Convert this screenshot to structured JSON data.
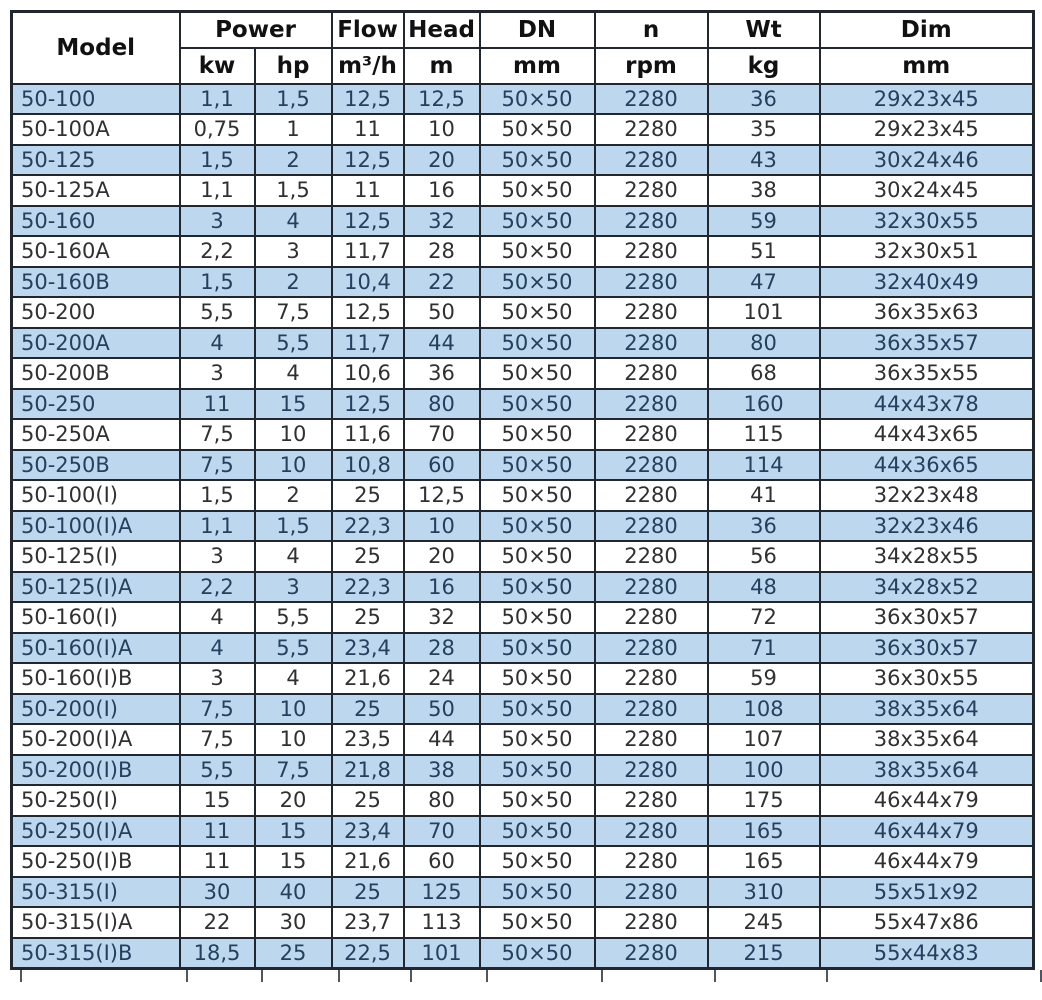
{
  "header": {
    "model": "Model",
    "power": "Power",
    "kw": "kw",
    "hp": "hp",
    "flow": "Flow",
    "flow_unit": "m³/h",
    "head": "Head",
    "head_unit": "m",
    "dn": "DN",
    "dn_unit": "mm",
    "n": "n",
    "n_unit": "rpm",
    "wt": "Wt",
    "wt_unit": "kg",
    "dim": "Dim",
    "dim_unit": "mm"
  },
  "columns": [
    "model",
    "kw",
    "hp",
    "flow",
    "head",
    "dn",
    "n",
    "wt",
    "dim"
  ],
  "rows": [
    [
      "50-100",
      "1,1",
      "1,5",
      "12,5",
      "12,5",
      "50×50",
      "2280",
      "36",
      "29x23x45"
    ],
    [
      "50-100A",
      "0,75",
      "1",
      "11",
      "10",
      "50×50",
      "2280",
      "35",
      "29x23x45"
    ],
    [
      "50-125",
      "1,5",
      "2",
      "12,5",
      "20",
      "50×50",
      "2280",
      "43",
      "30x24x46"
    ],
    [
      "50-125A",
      "1,1",
      "1,5",
      "11",
      "16",
      "50×50",
      "2280",
      "38",
      "30x24x45"
    ],
    [
      "50-160",
      "3",
      "4",
      "12,5",
      "32",
      "50×50",
      "2280",
      "59",
      "32x30x55"
    ],
    [
      "50-160A",
      "2,2",
      "3",
      "11,7",
      "28",
      "50×50",
      "2280",
      "51",
      "32x30x51"
    ],
    [
      "50-160B",
      "1,5",
      "2",
      "10,4",
      "22",
      "50×50",
      "2280",
      "47",
      "32x40x49"
    ],
    [
      "50-200",
      "5,5",
      "7,5",
      "12,5",
      "50",
      "50×50",
      "2280",
      "101",
      "36x35x63"
    ],
    [
      "50-200A",
      "4",
      "5,5",
      "11,7",
      "44",
      "50×50",
      "2280",
      "80",
      "36x35x57"
    ],
    [
      "50-200B",
      "3",
      "4",
      "10,6",
      "36",
      "50×50",
      "2280",
      "68",
      "36x35x55"
    ],
    [
      "50-250",
      "11",
      "15",
      "12,5",
      "80",
      "50×50",
      "2280",
      "160",
      "44x43x78"
    ],
    [
      "50-250A",
      "7,5",
      "10",
      "11,6",
      "70",
      "50×50",
      "2280",
      "115",
      "44x43x65"
    ],
    [
      "50-250B",
      "7,5",
      "10",
      "10,8",
      "60",
      "50×50",
      "2280",
      "114",
      "44x36x65"
    ],
    [
      "50-100(I)",
      "1,5",
      "2",
      "25",
      "12,5",
      "50×50",
      "2280",
      "41",
      "32x23x48"
    ],
    [
      "50-100(I)A",
      "1,1",
      "1,5",
      "22,3",
      "10",
      "50×50",
      "2280",
      "36",
      "32x23x46"
    ],
    [
      "50-125(I)",
      "3",
      "4",
      "25",
      "20",
      "50×50",
      "2280",
      "56",
      "34x28x55"
    ],
    [
      "50-125(I)A",
      "2,2",
      "3",
      "22,3",
      "16",
      "50×50",
      "2280",
      "48",
      "34x28x52"
    ],
    [
      "50-160(I)",
      "4",
      "5,5",
      "25",
      "32",
      "50×50",
      "2280",
      "72",
      "36x30x57"
    ],
    [
      "50-160(I)A",
      "4",
      "5,5",
      "23,4",
      "28",
      "50×50",
      "2280",
      "71",
      "36x30x57"
    ],
    [
      "50-160(I)B",
      "3",
      "4",
      "21,6",
      "24",
      "50×50",
      "2280",
      "59",
      "36x30x55"
    ],
    [
      "50-200(I)",
      "7,5",
      "10",
      "25",
      "50",
      "50×50",
      "2280",
      "108",
      "38x35x64"
    ],
    [
      "50-200(I)A",
      "7,5",
      "10",
      "23,5",
      "44",
      "50×50",
      "2280",
      "107",
      "38x35x64"
    ],
    [
      "50-200(I)B",
      "5,5",
      "7,5",
      "21,8",
      "38",
      "50×50",
      "2280",
      "100",
      "38x35x64"
    ],
    [
      "50-250(I)",
      "15",
      "20",
      "25",
      "80",
      "50×50",
      "2280",
      "175",
      "46x44x79"
    ],
    [
      "50-250(I)A",
      "11",
      "15",
      "23,4",
      "70",
      "50×50",
      "2280",
      "165",
      "46x44x79"
    ],
    [
      "50-250(I)B",
      "11",
      "15",
      "21,6",
      "60",
      "50×50",
      "2280",
      "165",
      "46x44x79"
    ],
    [
      "50-315(I)",
      "30",
      "40",
      "25",
      "125",
      "50×50",
      "2280",
      "310",
      "55x51x92"
    ],
    [
      "50-315(I)A",
      "22",
      "30",
      "23,7",
      "113",
      "50×50",
      "2280",
      "245",
      "55x47x86"
    ],
    [
      "50-315(I)B",
      "18,5",
      "25",
      "22,5",
      "101",
      "50×50",
      "2280",
      "215",
      "55x44x83"
    ]
  ],
  "colors": {
    "row_highlight": "#bdd7ee",
    "row_plain": "#ffffff",
    "row_text": "#303030",
    "row_text_highlight": "#24405e",
    "header_text": "#111111",
    "border_color": "#22262e"
  }
}
